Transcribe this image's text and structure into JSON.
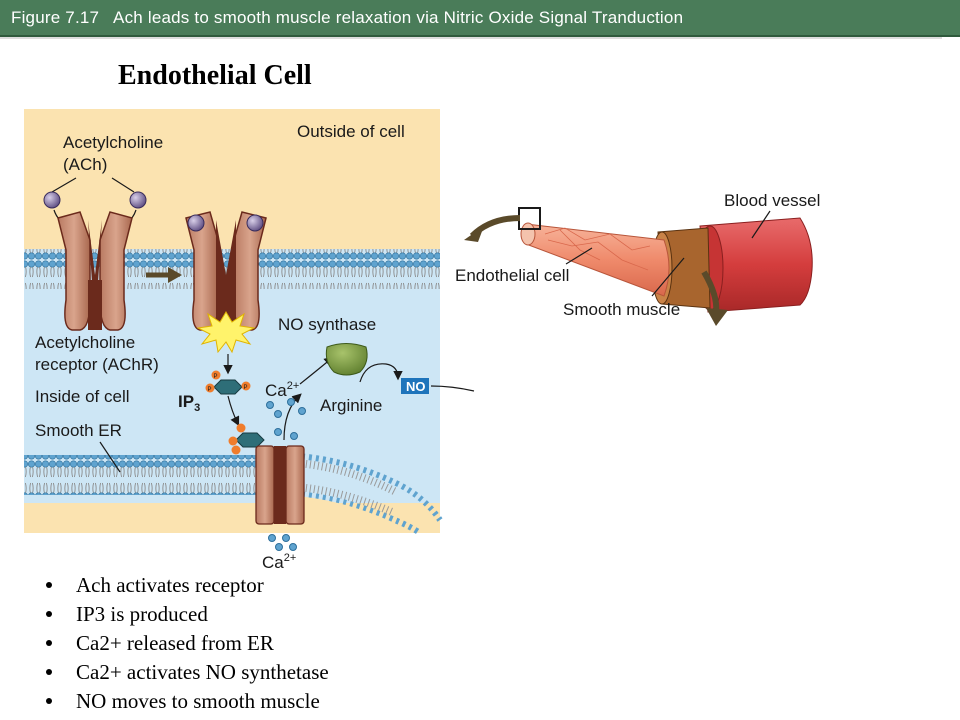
{
  "header": {
    "title": "Figure 7.17   Ach leads to smooth muscle relaxation via Nitric Oxide Signal Tranduction",
    "bg_color": "#4a7c59"
  },
  "slide_title": "Endothelial Cell",
  "diagram": {
    "labels": {
      "outside": "Outside of cell",
      "ach_line1": "Acetylcholine",
      "ach_line2": "(ACh)",
      "achr_line1": "Acetylcholine",
      "achr_line2": "receptor (AChR)",
      "inside": "Inside of cell",
      "smooth_er": "Smooth ER",
      "no_synthase": "NO synthase",
      "ip3": "IP",
      "ip3_sub": "3",
      "ca_upper": "Ca",
      "ca_upper_sup": "2+",
      "ca_lower": "Ca",
      "ca_lower_sup": "2+",
      "arginine": "Arginine",
      "no_badge": "NO",
      "phosphate": "P",
      "blood_vessel": "Blood vessel",
      "endothelial_cell": "Endothelial cell",
      "smooth_muscle": "Smooth muscle"
    },
    "colors": {
      "outside_bg": "#fbe3b0",
      "inside_bg": "#cde6f5",
      "receptor": "#c98f78",
      "receptor_dark": "#6b2a1c",
      "lipid_head": "#5fa3cf",
      "nos": "#6f8f3a",
      "no_badge": "#1e74bb",
      "vessel": "#d64a4a",
      "arrow": "#5a4a2a"
    },
    "icons": [
      "ach-molecule-icon",
      "receptor-icon",
      "ip3-molecule-icon",
      "calcium-ion-icon",
      "flow-arrow-icon"
    ]
  },
  "bullets": [
    "Ach activates receptor",
    "IP3 is produced",
    "Ca2+ released from ER",
    "Ca2+ activates NO synthetase",
    "NO moves to smooth muscle"
  ]
}
